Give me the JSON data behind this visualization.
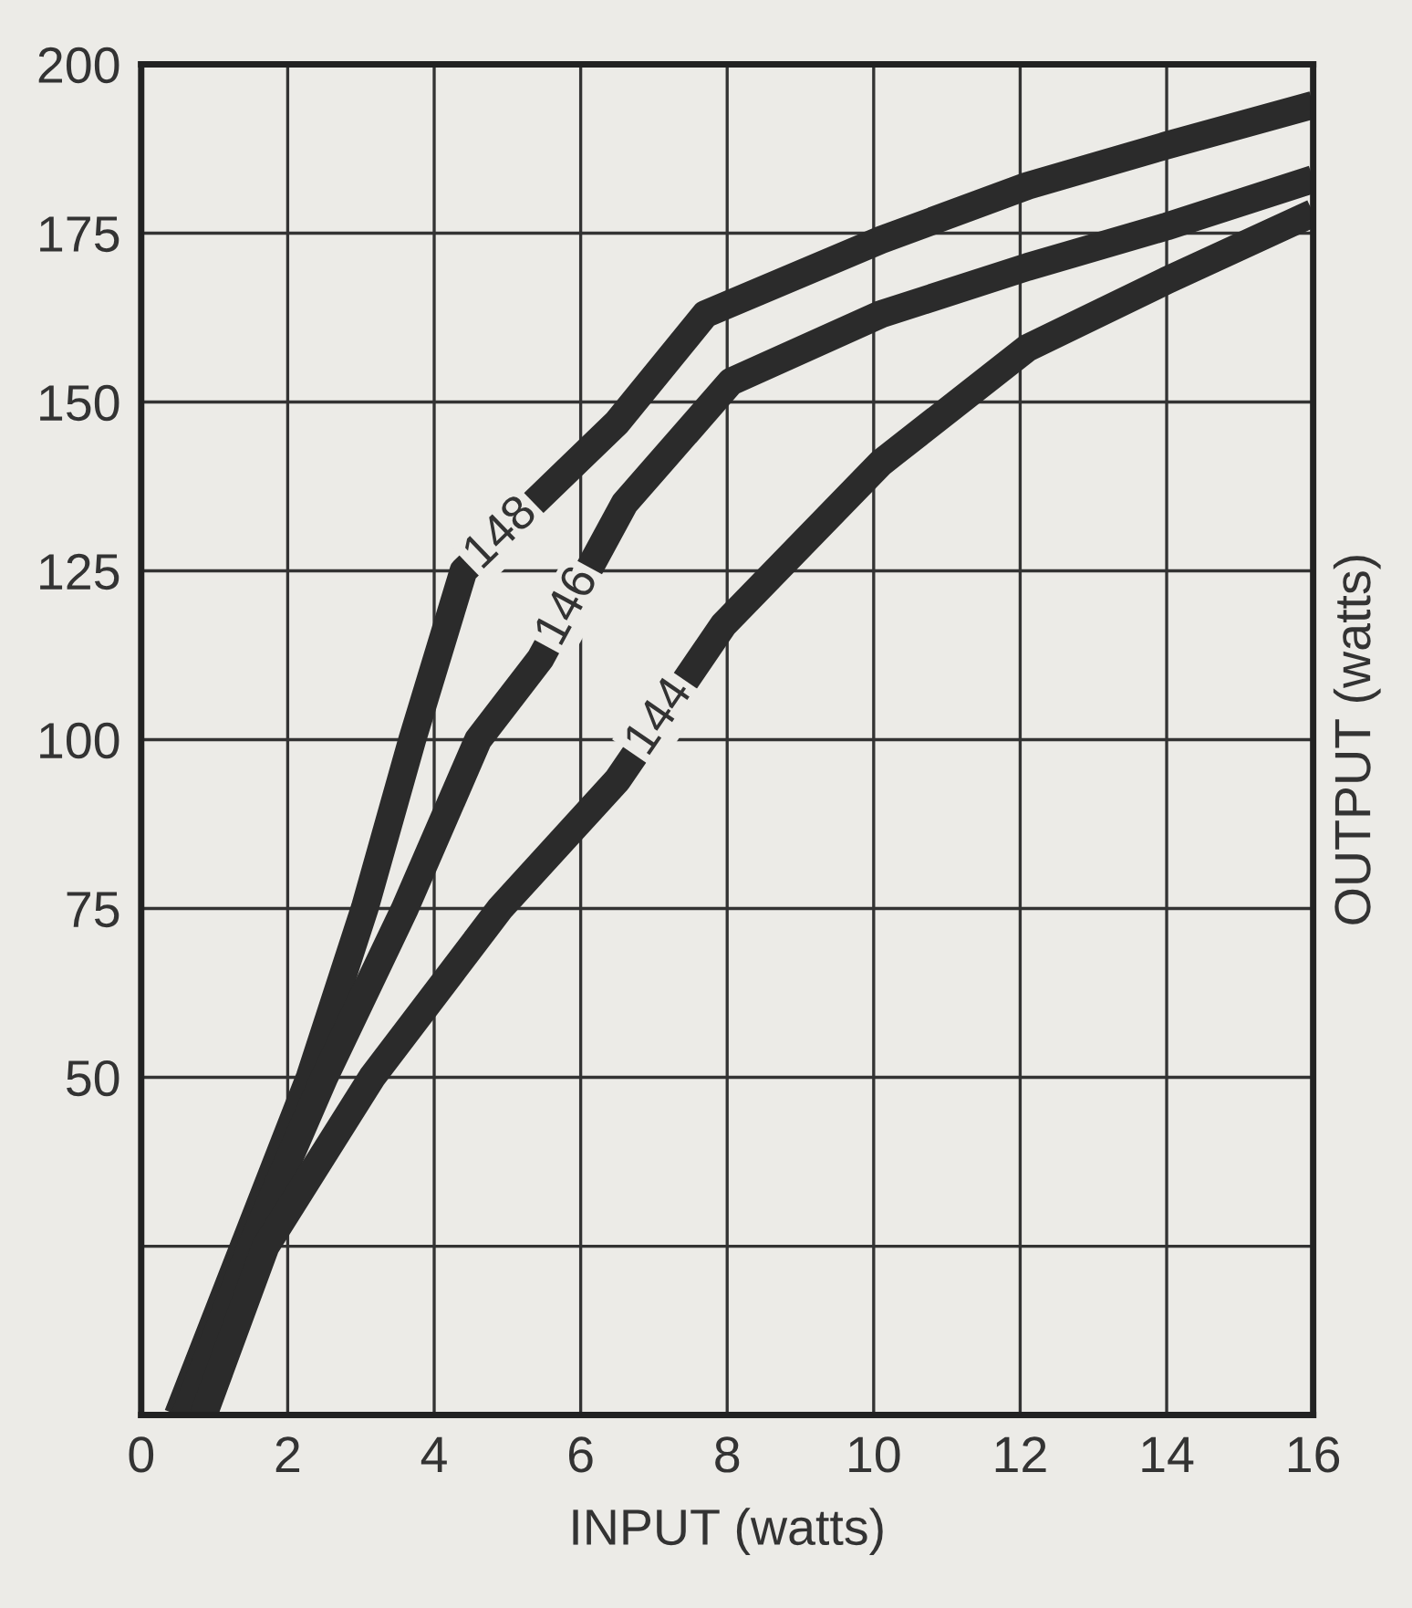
{
  "chart_data": {
    "type": "line",
    "xlabel": "INPUT (watts)",
    "ylabel": "OUTPUT (watts)",
    "series": [
      {
        "name": "148",
        "color": "#2b2b2b",
        "x": [
          0.5,
          1.4,
          2.3,
          3.05,
          3.7,
          4.4,
          6.5,
          7.7,
          10.1,
          12.1,
          14,
          16
        ],
        "values": [
          0,
          25,
          50,
          75,
          100,
          125,
          147,
          163,
          174,
          182,
          188,
          194
        ]
      },
      {
        "name": "146",
        "color": "#2b2b2b",
        "x": [
          0.6,
          1.5,
          2.5,
          3.6,
          4.6,
          5.45,
          6.6,
          8.05,
          10.1,
          12.1,
          14,
          16
        ],
        "values": [
          0,
          25,
          50,
          75,
          100,
          112,
          135,
          153,
          163,
          170,
          176,
          183
        ]
      },
      {
        "name": "144",
        "color": "#2b2b2b",
        "x": [
          0.85,
          1.7,
          3.15,
          4.9,
          6.5,
          7.95,
          10.1,
          12.1,
          14,
          16
        ],
        "values": [
          0,
          25,
          50,
          75,
          94,
          117,
          141,
          158,
          168,
          178
        ]
      }
    ],
    "xlim": [
      0,
      16
    ],
    "xticks": [
      0,
      2,
      4,
      6,
      8,
      10,
      12,
      14,
      16
    ],
    "ylim": [
      0,
      200
    ],
    "yticks": [
      {
        "value": 0,
        "label": null
      },
      {
        "value": 25,
        "label": null
      },
      50,
      75,
      100,
      125,
      150,
      175,
      200
    ],
    "grid": true,
    "marker": "none",
    "line_style": "solid"
  }
}
